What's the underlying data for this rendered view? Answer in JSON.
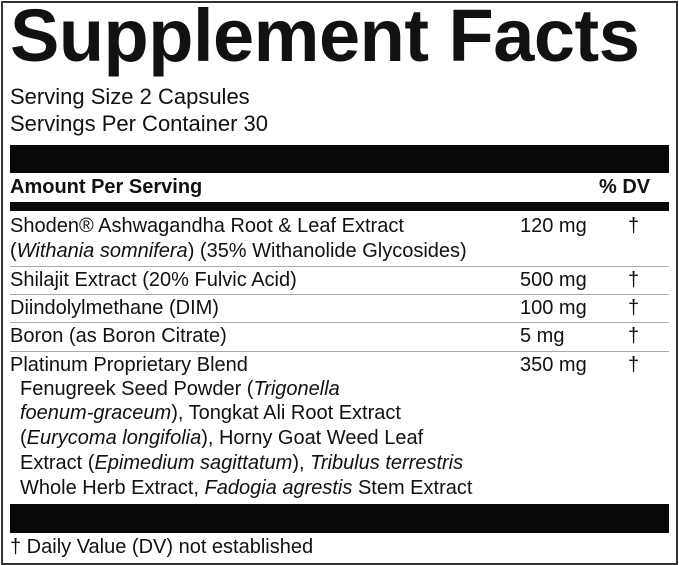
{
  "title": "Supplement Facts",
  "serving_size": "Serving Size 2 Capsules",
  "servings_per_container": "Servings Per Container 30",
  "header": {
    "amount_per_serving": "Amount Per Serving",
    "dv": "% DV"
  },
  "rows": [
    {
      "line1": "Shoden® Ashwagandha Root & Leaf Extract",
      "line2_a": "(",
      "line2_i": "Withania somnifera",
      "line2_b": ") (35% Withanolide Glycosides)",
      "amount": "120 mg",
      "dv": "†"
    },
    {
      "name": "Shilajit Extract (20% Fulvic Acid)",
      "amount": "500 mg",
      "dv": "†"
    },
    {
      "name": "Diindolylmethane (DIM)",
      "amount": "100 mg",
      "dv": "†"
    },
    {
      "name": "Boron (as Boron Citrate)",
      "amount": "5 mg",
      "dv": "†"
    },
    {
      "name": "Platinum Proprietary Blend",
      "amount": "350 mg",
      "dv": "†"
    }
  ],
  "blend": {
    "l1a": "Fenugreek Seed Powder (",
    "l1i": "Trigonella",
    "l2i": "foenum-graceum",
    "l2b": "), Tongkat Ali Root Extract",
    "l3a": "(",
    "l3i": "Eurycoma longifolia",
    "l3b": "), Horny Goat Weed Leaf",
    "l4a": "Extract (",
    "l4i": "Epimedium sagittatum",
    "l4b": "), ",
    "l4i2": "Tribulus terrestris",
    "l5a": "Whole Herb Extract, ",
    "l5i": "Fadogia agrestis",
    "l5b": " Stem Extract"
  },
  "footnote": "† Daily Value (DV) not established"
}
